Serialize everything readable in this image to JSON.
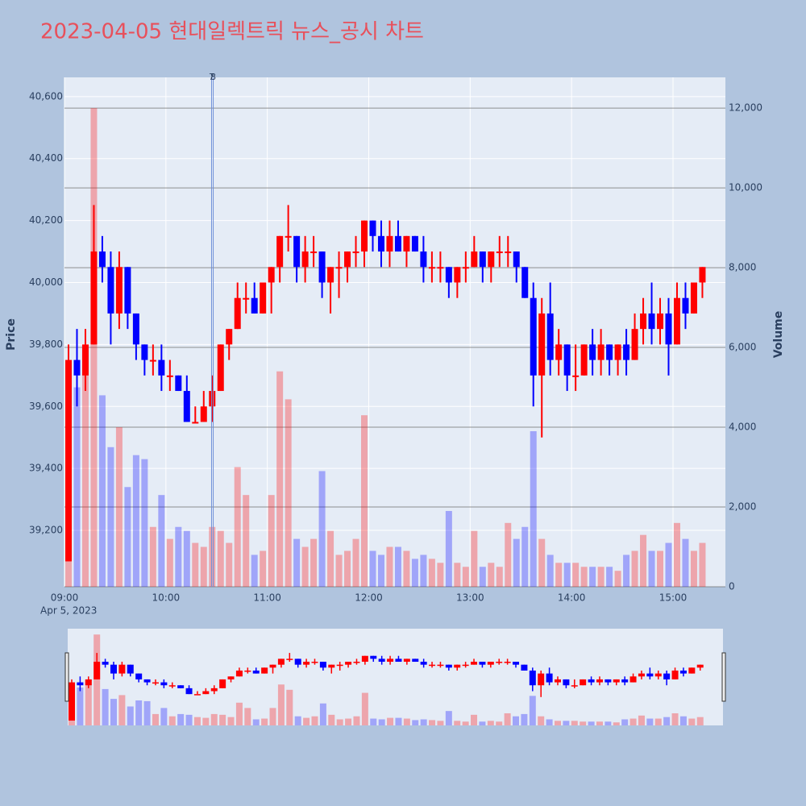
{
  "chart_data": {
    "type": "candlestick",
    "title": "2023-04-05 현대일렉트릭 뉴스_공시 차트",
    "y_axis_label": "Price",
    "y2_axis_label": "Volume",
    "x_date_label": "Apr 5, 2023",
    "increasing_color": "#ff0000",
    "decreasing_color": "#0000ff",
    "x": [
      "09:00",
      "09:05",
      "09:10",
      "09:15",
      "09:20",
      "09:25",
      "09:30",
      "09:35",
      "09:40",
      "09:45",
      "09:50",
      "09:55",
      "10:00",
      "10:05",
      "10:10",
      "10:15",
      "10:20",
      "10:25",
      "10:30",
      "10:35",
      "10:40",
      "10:45",
      "10:50",
      "10:55",
      "11:00",
      "11:05",
      "11:10",
      "11:15",
      "11:20",
      "11:25",
      "11:30",
      "11:35",
      "11:40",
      "11:45",
      "11:50",
      "11:55",
      "12:00",
      "12:05",
      "12:10",
      "12:15",
      "12:20",
      "12:25",
      "12:30",
      "12:35",
      "12:40",
      "12:45",
      "12:50",
      "12:55",
      "13:00",
      "13:05",
      "13:10",
      "13:15",
      "13:20",
      "13:25",
      "13:30",
      "13:35",
      "13:40",
      "13:45",
      "13:50",
      "13:55",
      "14:00",
      "14:05",
      "14:10",
      "14:15",
      "14:20",
      "14:25",
      "14:30",
      "14:35",
      "14:40",
      "14:45",
      "14:50",
      "14:55",
      "15:00",
      "15:05",
      "15:10",
      "15:15"
    ],
    "open": [
      39100,
      39750,
      39700,
      39800,
      40100,
      40050,
      39900,
      40050,
      39900,
      39800,
      39750,
      39750,
      39700,
      39700,
      39650,
      39550,
      39550,
      39600,
      39650,
      39800,
      39850,
      39950,
      39950,
      39900,
      40000,
      40050,
      40150,
      40150,
      40050,
      40100,
      40100,
      40000,
      40050,
      40050,
      40100,
      40100,
      40200,
      40150,
      40100,
      40150,
      40100,
      40150,
      40100,
      40050,
      40050,
      40050,
      40000,
      40050,
      40050,
      40100,
      40050,
      40100,
      40100,
      40100,
      40050,
      39950,
      39700,
      39900,
      39750,
      39800,
      39700,
      39700,
      39800,
      39750,
      39800,
      39750,
      39800,
      39750,
      39850,
      39900,
      39850,
      39900,
      39800,
      39950,
      39900,
      40000
    ],
    "high": [
      39800,
      39850,
      39850,
      40250,
      40150,
      40100,
      40100,
      40050,
      39900,
      39800,
      39800,
      39800,
      39750,
      39700,
      39700,
      39600,
      39650,
      39700,
      39800,
      39850,
      40000,
      40000,
      40000,
      40000,
      40050,
      40150,
      40250,
      40150,
      40150,
      40150,
      40100,
      40050,
      40100,
      40100,
      40150,
      40200,
      40200,
      40200,
      40200,
      40200,
      40150,
      40150,
      40150,
      40100,
      40100,
      40050,
      40050,
      40100,
      40150,
      40100,
      40100,
      40150,
      40150,
      40100,
      40050,
      40000,
      39950,
      40000,
      39850,
      39800,
      39800,
      39800,
      39850,
      39850,
      39800,
      39800,
      39850,
      39900,
      39950,
      40000,
      39950,
      39950,
      40000,
      40000,
      40000,
      40050
    ],
    "low": [
      39100,
      39600,
      39650,
      39800,
      40000,
      39800,
      39850,
      39850,
      39750,
      39700,
      39700,
      39650,
      39650,
      39650,
      39550,
      39550,
      39550,
      39550,
      39650,
      39750,
      39850,
      39900,
      39900,
      39900,
      39900,
      40000,
      40100,
      40000,
      40000,
      40050,
      39950,
      39900,
      39950,
      40000,
      40050,
      40050,
      40100,
      40050,
      40050,
      40100,
      40050,
      40100,
      40000,
      40000,
      40000,
      39950,
      39950,
      40000,
      40050,
      40000,
      40000,
      40050,
      40050,
      40000,
      39950,
      39600,
      39500,
      39700,
      39700,
      39650,
      39650,
      39700,
      39700,
      39700,
      39700,
      39700,
      39700,
      39750,
      39800,
      39800,
      39800,
      39700,
      39800,
      39850,
      39900,
      39950
    ],
    "close": [
      39750,
      39700,
      39800,
      40100,
      40050,
      39900,
      40050,
      39900,
      39800,
      39750,
      39750,
      39700,
      39700,
      39650,
      39550,
      39550,
      39600,
      39650,
      39800,
      39850,
      39950,
      39950,
      39900,
      40000,
      40050,
      40150,
      40150,
      40050,
      40100,
      40100,
      40000,
      40050,
      40050,
      40100,
      40100,
      40200,
      40150,
      40100,
      40150,
      40100,
      40150,
      40100,
      40050,
      40050,
      40050,
      40000,
      40050,
      40050,
      40100,
      40050,
      40100,
      40100,
      40100,
      40050,
      39950,
      39700,
      39900,
      39750,
      39800,
      39700,
      39700,
      39800,
      39750,
      39800,
      39750,
      39800,
      39750,
      39850,
      39900,
      39850,
      39900,
      39800,
      39950,
      39900,
      40000,
      40050
    ],
    "volume": [
      3000,
      5000,
      6000,
      12000,
      4800,
      3500,
      4000,
      2500,
      3300,
      3200,
      1500,
      2300,
      1200,
      1500,
      1400,
      1100,
      1000,
      1500,
      1400,
      1100,
      3000,
      2300,
      800,
      900,
      2300,
      5400,
      4700,
      1200,
      1000,
      1200,
      2900,
      1400,
      800,
      900,
      1200,
      4300,
      900,
      800,
      1000,
      1000,
      900,
      700,
      800,
      700,
      600,
      1900,
      600,
      500,
      1400,
      500,
      600,
      500,
      1600,
      1200,
      1500,
      3900,
      1200,
      800,
      600,
      600,
      600,
      500,
      500,
      500,
      500,
      400,
      800,
      900,
      1300,
      900,
      900,
      1100,
      1600,
      1200,
      900,
      1100
    ],
    "annotations": [
      {
        "x": "10:27",
        "text": "7"
      },
      {
        "x": "10:28",
        "text": "8"
      }
    ],
    "xlim": [
      "09:00",
      "15:31"
    ],
    "xticks": [
      "09:00",
      "10:00",
      "11:00",
      "12:00",
      "13:00",
      "14:00",
      "15:00"
    ],
    "ylim": [
      39018,
      40662
    ],
    "yticks": [
      {
        "value": 39200,
        "label": "39,200"
      },
      {
        "value": 39400,
        "label": "39,400"
      },
      {
        "value": 39600,
        "label": "39,600"
      },
      {
        "value": 39800,
        "label": "39,800"
      },
      {
        "value": 40000,
        "label": "40,000"
      },
      {
        "value": 40200,
        "label": "40,200"
      },
      {
        "value": 40400,
        "label": "40,400"
      },
      {
        "value": 40600,
        "label": "40,600"
      }
    ],
    "y2lim": [
      0,
      12770
    ],
    "y2ticks": [
      0,
      {
        "value": 2000,
        "label": "2,000"
      },
      {
        "value": 4000,
        "label": "4,000"
      },
      {
        "value": 6000,
        "label": "6,000"
      },
      {
        "value": 8000,
        "label": "8,000"
      },
      {
        "value": 10000,
        "label": "10,000"
      },
      {
        "value": 12000,
        "label": "12,000"
      }
    ],
    "grid": true,
    "range_slider": true
  }
}
